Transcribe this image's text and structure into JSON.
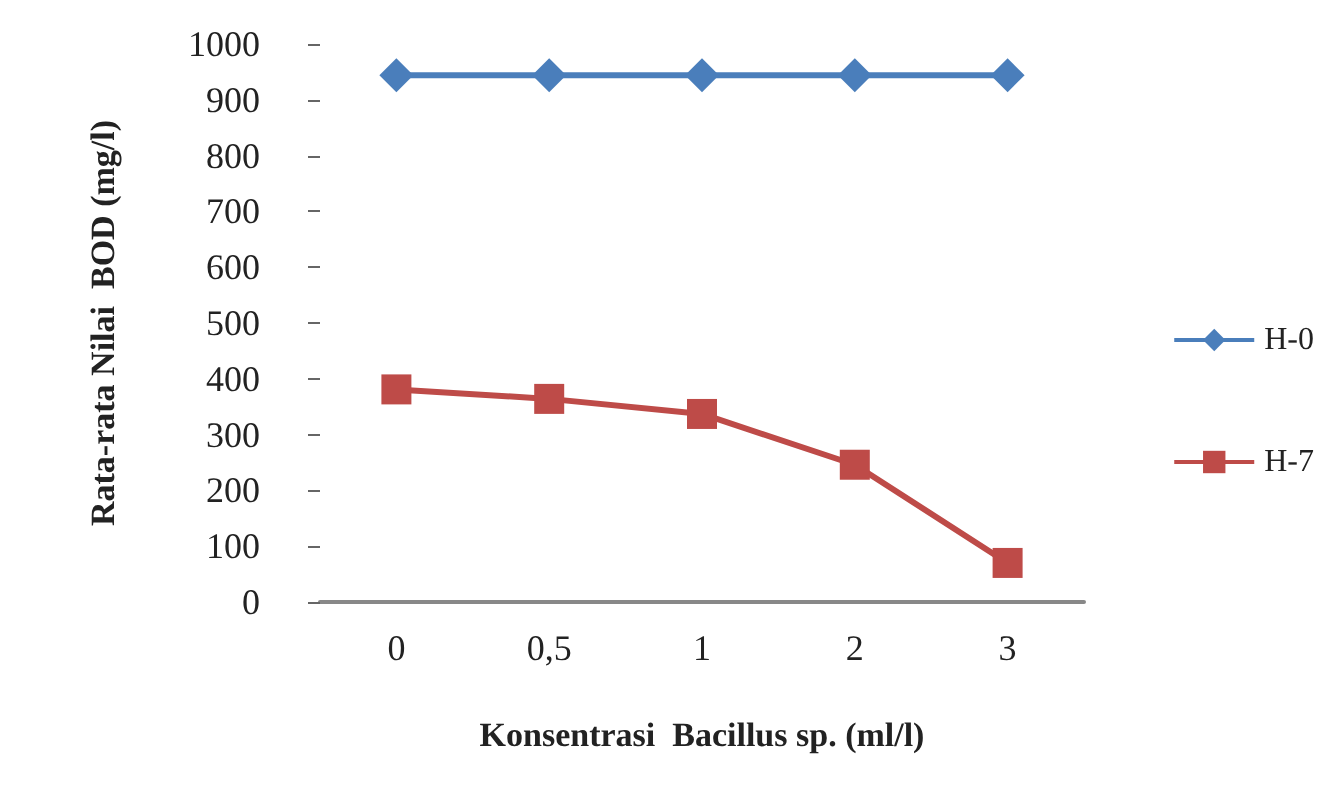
{
  "chart_data": {
    "type": "line",
    "xlabel": "Konsentrasi  Bacillus sp. (ml/l)",
    "ylabel": "Rata-rata Nilai  BOD (mg/l)",
    "categories": [
      "0",
      "0,5",
      "1",
      "2",
      "3"
    ],
    "series": [
      {
        "name": "H-0",
        "color": "#4a7ebb",
        "marker": "diamond",
        "values": [
          944,
          944,
          944,
          944,
          944
        ]
      },
      {
        "name": "H-7",
        "color": "#be4b48",
        "marker": "square",
        "values": [
          381,
          364,
          337,
          246,
          70
        ]
      }
    ],
    "ylim": [
      0,
      1000
    ],
    "yticks": [
      0,
      100,
      200,
      300,
      400,
      500,
      600,
      700,
      800,
      900,
      1000
    ],
    "grid": false,
    "legend": "right"
  }
}
